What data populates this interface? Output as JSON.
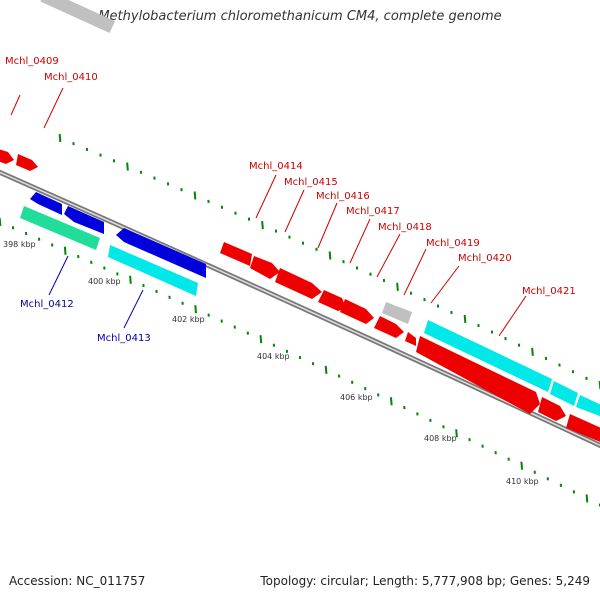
{
  "header": {
    "title": "Methylobacterium chloromethanicum CM4, complete genome"
  },
  "footer": {
    "accession": "Accession: NC_011757",
    "summary": "Topology: circular; Length: 5,777,908 bp; Genes: 5,249"
  },
  "colors": {
    "cds_forward": "#ee0000",
    "cds_reverse_dark": "#0000dd",
    "cds_reverse_light": "#00e8e8",
    "gene_teal": "#22dd99",
    "other_feature": "#c0c0c0",
    "backbone": "#888888",
    "tick": "#008800",
    "label_forward": "#cc0000",
    "label_reverse": "#0000aa"
  },
  "ruler": {
    "ticks": [
      {
        "label": "398 kbp"
      },
      {
        "label": "400 kbp"
      },
      {
        "label": "402 kbp"
      },
      {
        "label": "404 kbp"
      },
      {
        "label": "406 kbp"
      },
      {
        "label": "408 kbp"
      },
      {
        "label": "410 kbp"
      }
    ]
  },
  "gene_labels": {
    "forward": [
      "Mchl_0409",
      "Mchl_0410",
      "Mchl_0414",
      "Mchl_0415",
      "Mchl_0416",
      "Mchl_0417",
      "Mchl_0418",
      "Mchl_0419",
      "Mchl_0420",
      "Mchl_0421"
    ],
    "reverse": [
      "Mchl_0412",
      "Mchl_0413"
    ]
  }
}
